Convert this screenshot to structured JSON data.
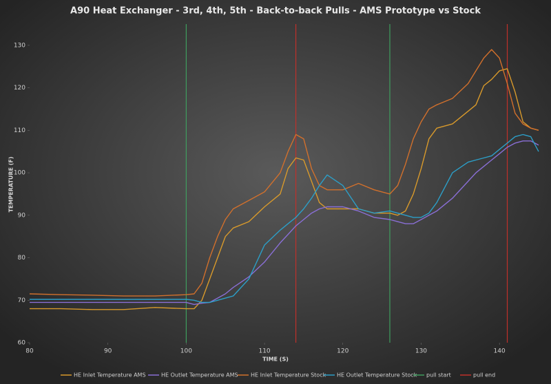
{
  "chart_data": {
    "type": "line",
    "title": "A90 Heat Exchanger - 3rd, 4th, 5th - Back-to-back Pulls - AMS Prototype vs Stock",
    "x_label": "TIME (S)",
    "y_label": "TEMPERATURE (F)",
    "x": [
      80,
      84,
      88,
      92,
      96,
      100,
      101,
      102,
      103,
      104,
      105,
      106,
      108,
      110,
      112,
      113,
      114,
      115,
      116,
      117,
      118,
      120,
      122,
      124,
      126,
      127,
      128,
      129,
      130,
      131,
      132,
      134,
      136,
      137,
      138,
      139,
      140,
      141,
      142,
      143,
      144,
      145
    ],
    "series": [
      {
        "name": "HE Inlet Temperature AMS",
        "color": "#d99a2b",
        "values": [
          68,
          68,
          67.8,
          67.8,
          68.3,
          68,
          68,
          70,
          75,
          80,
          85,
          87,
          88.5,
          92,
          95,
          101,
          103.5,
          103,
          98,
          93,
          91.5,
          91.5,
          91.5,
          90.5,
          90.5,
          90,
          91,
          95,
          101,
          108,
          110.5,
          111.5,
          114.5,
          116,
          120.5,
          122,
          124,
          124.5,
          119,
          112,
          110.5,
          110
        ]
      },
      {
        "name": "HE Outlet Temperature AMS",
        "color": "#8a6fd6",
        "values": [
          69.5,
          69.5,
          69.5,
          69.5,
          69.5,
          69.5,
          69,
          69.3,
          69.5,
          70.5,
          71.5,
          73,
          75.5,
          79,
          83.5,
          85.5,
          87.5,
          89,
          90.5,
          91.5,
          92,
          92,
          91,
          89.5,
          89,
          88.5,
          88,
          88,
          89,
          90,
          91,
          94,
          98,
          100,
          101.5,
          103,
          104.5,
          106,
          107,
          107.5,
          107.5,
          106.5
        ]
      },
      {
        "name": "HE Inlet Temperature Stock",
        "color": "#d2702c",
        "values": [
          71.5,
          71.3,
          71.2,
          71,
          71,
          71.3,
          71.5,
          74,
          80,
          85,
          89,
          91.5,
          93.5,
          95.5,
          100,
          105,
          109,
          108,
          101,
          97,
          96,
          96,
          97.5,
          96,
          95,
          97,
          102,
          108,
          112,
          115,
          116,
          117.5,
          121,
          124,
          127,
          129,
          127,
          121,
          114,
          111.5,
          110.5,
          110
        ]
      },
      {
        "name": "HE Outlet Temperature Stock",
        "color": "#2c9fc8",
        "values": [
          70.2,
          70.2,
          70.2,
          70.2,
          70.2,
          70.2,
          70,
          69.5,
          69.5,
          70,
          70.5,
          71,
          75,
          83,
          86.5,
          88,
          89.5,
          91.5,
          94,
          97,
          99.5,
          97,
          91.5,
          90.5,
          91,
          90.5,
          90,
          89.5,
          89.5,
          90.5,
          93,
          100,
          102.5,
          103,
          103.5,
          104,
          105.5,
          107,
          108.5,
          109,
          108.5,
          105
        ]
      }
    ],
    "vlines": [
      {
        "name": "pull start",
        "color": "#3f9e5e",
        "x": [
          100,
          126
        ]
      },
      {
        "name": "pull end",
        "color": "#c0302a",
        "x": [
          114,
          141
        ]
      }
    ],
    "xlim": [
      80,
      145
    ],
    "ylim": [
      60,
      135
    ],
    "xticks": [
      80,
      90,
      100,
      110,
      120,
      130,
      140
    ],
    "yticks": [
      60,
      70,
      80,
      90,
      100,
      110,
      120,
      130
    ],
    "grid": false
  }
}
